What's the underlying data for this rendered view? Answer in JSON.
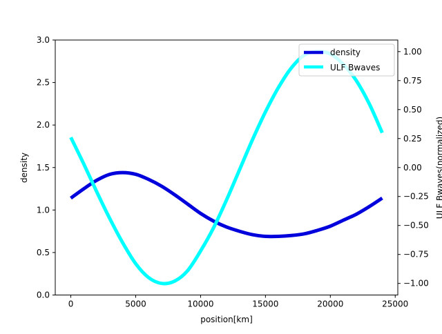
{
  "chart_data": {
    "type": "line",
    "title": "",
    "xlabel": "position[km]",
    "ylabel_left": "density",
    "ylabel_right": "ULF Bwaves(normalized)",
    "xlim": [
      -1200,
      25200
    ],
    "ylim_left": [
      0,
      3
    ],
    "ylim_right": [
      -1.1,
      1.1
    ],
    "x_ticks": [
      0,
      5000,
      10000,
      15000,
      20000,
      25000
    ],
    "x_tick_labels": [
      "0",
      "5000",
      "10000",
      "15000",
      "20000",
      "25000"
    ],
    "y_left_ticks": [
      0,
      0.5,
      1,
      1.5,
      2,
      2.5,
      3
    ],
    "y_left_tick_labels": [
      "0.0",
      "0.5",
      "1.0",
      "1.5",
      "2.0",
      "2.5",
      "3.0"
    ],
    "y_right_ticks": [
      -1,
      -0.75,
      -0.5,
      -0.25,
      0,
      0.25,
      0.5,
      0.75,
      1
    ],
    "y_right_tick_labels": [
      "−1.00",
      "−0.75",
      "−0.50",
      "−0.25",
      "0.00",
      "0.25",
      "0.50",
      "0.75",
      "1.00"
    ],
    "grid": false,
    "legend_position": "top-right",
    "series": [
      {
        "name": "density",
        "axis": "left",
        "color": "#0000dd",
        "x": [
          0,
          1000,
          2000,
          3000,
          4000,
          5000,
          6000,
          7000,
          8000,
          9000,
          10000,
          11000,
          12000,
          13000,
          14000,
          15000,
          16000,
          17000,
          18000,
          19000,
          20000,
          21000,
          22000,
          23000,
          24000
        ],
        "y": [
          1.14,
          1.25,
          1.35,
          1.42,
          1.44,
          1.42,
          1.36,
          1.28,
          1.18,
          1.07,
          0.96,
          0.87,
          0.8,
          0.75,
          0.71,
          0.69,
          0.69,
          0.7,
          0.72,
          0.76,
          0.81,
          0.88,
          0.95,
          1.04,
          1.14
        ]
      },
      {
        "name": "ULF Bwaves",
        "axis": "right",
        "color": "#00ffff",
        "x": [
          0,
          1000,
          2000,
          3000,
          4000,
          5000,
          6000,
          7000,
          8000,
          9000,
          10000,
          11000,
          12000,
          13000,
          14000,
          15000,
          16000,
          17000,
          18000,
          19000,
          20000,
          21000,
          22000,
          23000,
          24000
        ],
        "y": [
          0.26,
          0.03,
          -0.21,
          -0.44,
          -0.65,
          -0.83,
          -0.95,
          -1.0,
          -0.98,
          -0.89,
          -0.72,
          -0.52,
          -0.28,
          -0.02,
          0.24,
          0.48,
          0.69,
          0.86,
          0.97,
          1.0,
          0.98,
          0.89,
          0.75,
          0.55,
          0.3
        ]
      }
    ]
  }
}
